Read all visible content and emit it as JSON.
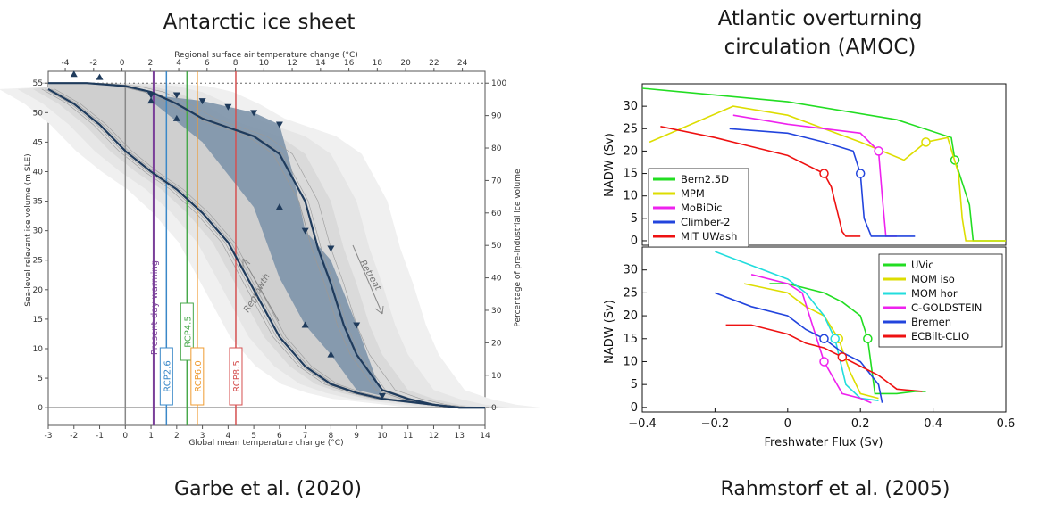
{
  "colors": {
    "ice_line": "#1f3b5c",
    "ice_fill": "#7d93aa",
    "shade": "#cfcfcf",
    "present": "#7a3f99",
    "rcp26": "#3a88c8",
    "rcp45": "#47a84a",
    "rcp60": "#ef9b30",
    "rcp85": "#d55050"
  },
  "titles": {
    "left": "Antarctic ice sheet",
    "right_line1": "Atlantic overturning",
    "right_line2": "circulation (AMOC)"
  },
  "citations": {
    "left": "Garbe et al. (2020)",
    "right": "Rahmstorf et al. (2005)"
  },
  "chart_data": [
    {
      "type": "line",
      "xlabel": "Global mean temperature change (°C)",
      "x2label": "Regional surface air temperature change (°C)",
      "ylabel": "Sea-level relevant ice volume (m SLE)",
      "y2label": "Percentage of pre-industrial ice volume",
      "xlim": [
        -3,
        14
      ],
      "ylim": [
        -3,
        57
      ],
      "x_ticks": [
        -3,
        -2,
        -1,
        0,
        1,
        2,
        3,
        4,
        5,
        6,
        7,
        8,
        9,
        10,
        11,
        12,
        13,
        14
      ],
      "x2_ticks": [
        -4,
        -2,
        0,
        2,
        4,
        6,
        8,
        10,
        12,
        14,
        16,
        18,
        20,
        22,
        24
      ],
      "y_ticks": [
        0,
        5,
        10,
        15,
        20,
        25,
        30,
        35,
        40,
        45,
        50,
        55
      ],
      "y2_ticks": [
        0,
        10,
        20,
        30,
        40,
        50,
        60,
        70,
        80,
        90,
        100
      ],
      "annotations": {
        "present_label": "Present-day warming",
        "regrowth": "Regrowth",
        "retreat": "Retreat"
      },
      "scenarios": [
        {
          "label": "RCP2.6",
          "x": 1.6
        },
        {
          "label": "RCP4.5",
          "x": 2.4
        },
        {
          "label": "RCP6.0",
          "x": 2.8
        },
        {
          "label": "RCP8.5",
          "x": 4.3
        }
      ],
      "present_x": 1.1,
      "series": [
        {
          "role": "retreat",
          "x": [
            -3,
            -1.5,
            0,
            1,
            2,
            3,
            4,
            5,
            6,
            7,
            7.5,
            8,
            8.5,
            9,
            10,
            11,
            12,
            13,
            14
          ],
          "y": [
            55,
            55,
            54.5,
            53.5,
            51.5,
            49,
            47.5,
            46,
            43,
            35,
            27,
            21,
            14,
            9,
            3,
            1.5,
            0.5,
            0,
            0
          ]
        },
        {
          "role": "regrowth",
          "x": [
            14,
            13,
            12,
            11,
            10,
            9,
            8,
            7,
            6,
            5,
            4,
            3,
            2,
            1,
            0,
            -1,
            -2,
            -3
          ],
          "y": [
            0,
            0,
            0.5,
            1,
            1.5,
            2.5,
            4,
            7,
            12,
            20,
            28,
            33,
            37,
            40,
            43.5,
            48,
            51.5,
            54
          ]
        },
        {
          "role": "markers-up",
          "x": [
            -2,
            -1,
            1,
            2,
            6,
            7,
            8
          ],
          "y": [
            56.5,
            56,
            52,
            49,
            34,
            14,
            9
          ]
        },
        {
          "role": "markers-down",
          "x": [
            1,
            2,
            3,
            4,
            5,
            6,
            7,
            8,
            9,
            10
          ],
          "y": [
            53,
            53,
            52,
            51,
            50,
            48,
            30,
            27,
            14,
            2
          ]
        }
      ]
    },
    {
      "type": "line",
      "xlabel": "",
      "ylabel": "NADW (Sv)",
      "xlim": [
        -0.4,
        0.6
      ],
      "ylim": [
        -1,
        35
      ],
      "y_ticks": [
        0,
        5,
        10,
        15,
        20,
        25,
        30
      ],
      "legend": "bottom-left",
      "series": [
        {
          "name": "Bern2.5D",
          "color": "#22dd22",
          "x": [
            -0.4,
            0.0,
            0.3,
            0.45,
            0.46,
            0.5,
            0.51,
            0.6
          ],
          "y": [
            34,
            31,
            27,
            23,
            18,
            8,
            0,
            0
          ]
        },
        {
          "name": "MPM",
          "color": "#dddd00",
          "x": [
            -0.38,
            -0.15,
            0.0,
            0.2,
            0.32,
            0.38,
            0.44,
            0.47,
            0.48,
            0.49,
            0.6
          ],
          "y": [
            22,
            30,
            28,
            22,
            18,
            22,
            23,
            15,
            5,
            0,
            0
          ]
        },
        {
          "name": "MoBiDic",
          "color": "#ee22ee",
          "x": [
            -0.15,
            0.0,
            0.1,
            0.2,
            0.25,
            0.26,
            0.27,
            0.3
          ],
          "y": [
            28,
            26,
            25,
            24,
            20,
            10,
            1,
            1
          ]
        },
        {
          "name": "Climber-2",
          "color": "#2244dd",
          "x": [
            -0.16,
            0.0,
            0.1,
            0.18,
            0.2,
            0.21,
            0.23,
            0.35
          ],
          "y": [
            25,
            24,
            22,
            20,
            15,
            5,
            1,
            1
          ]
        },
        {
          "name": "MIT UWash",
          "color": "#ee1111",
          "x": [
            -0.35,
            -0.2,
            -0.1,
            0.0,
            0.1,
            0.12,
            0.15,
            0.16,
            0.2
          ],
          "y": [
            25.5,
            23,
            21,
            19,
            15,
            12,
            2,
            1,
            1
          ]
        }
      ]
    },
    {
      "type": "line",
      "xlabel": "Freshwater Flux (Sv)",
      "ylabel": "NADW (Sv)",
      "xlim": [
        -0.4,
        0.6
      ],
      "ylim": [
        -1,
        35
      ],
      "x_ticks": [
        -0.4,
        -0.2,
        0,
        0.2,
        0.4,
        0.6
      ],
      "y_ticks": [
        0,
        5,
        10,
        15,
        20,
        25,
        30
      ],
      "legend": "top-right",
      "series": [
        {
          "name": "UVic",
          "color": "#22dd22",
          "x": [
            -0.05,
            0.0,
            0.1,
            0.15,
            0.2,
            0.22,
            0.24,
            0.3,
            0.35,
            0.38
          ],
          "y": [
            27,
            27,
            25,
            23,
            20,
            15,
            3,
            3,
            3.5,
            3.5
          ]
        },
        {
          "name": "MOM iso",
          "color": "#dddd00",
          "x": [
            -0.12,
            0.0,
            0.05,
            0.1,
            0.14,
            0.17,
            0.2,
            0.25
          ],
          "y": [
            27,
            25,
            22,
            20,
            15,
            8,
            3,
            2
          ]
        },
        {
          "name": "MOM hor",
          "color": "#22dddd",
          "x": [
            -0.2,
            0.0,
            0.05,
            0.1,
            0.13,
            0.16,
            0.2,
            0.25
          ],
          "y": [
            34,
            28,
            25,
            20,
            15,
            5,
            2,
            1.5
          ]
        },
        {
          "name": "C-GOLDSTEIN",
          "color": "#ee22ee",
          "x": [
            -0.1,
            0.0,
            0.04,
            0.06,
            0.1,
            0.15,
            0.2,
            0.23
          ],
          "y": [
            29,
            27,
            25,
            20,
            10,
            3,
            2,
            1
          ]
        },
        {
          "name": "Bremen",
          "color": "#2244dd",
          "x": [
            -0.2,
            -0.1,
            0.0,
            0.05,
            0.1,
            0.15,
            0.2,
            0.25,
            0.26
          ],
          "y": [
            25,
            22,
            20,
            17,
            15,
            12,
            10,
            5,
            1
          ]
        },
        {
          "name": "ECBilt-CLIO",
          "color": "#ee1111",
          "x": [
            -0.17,
            -0.1,
            0.0,
            0.05,
            0.1,
            0.15,
            0.2,
            0.25,
            0.3,
            0.37
          ],
          "y": [
            18,
            18,
            16,
            14,
            13,
            11,
            9,
            7,
            4,
            3.5
          ]
        }
      ]
    }
  ]
}
